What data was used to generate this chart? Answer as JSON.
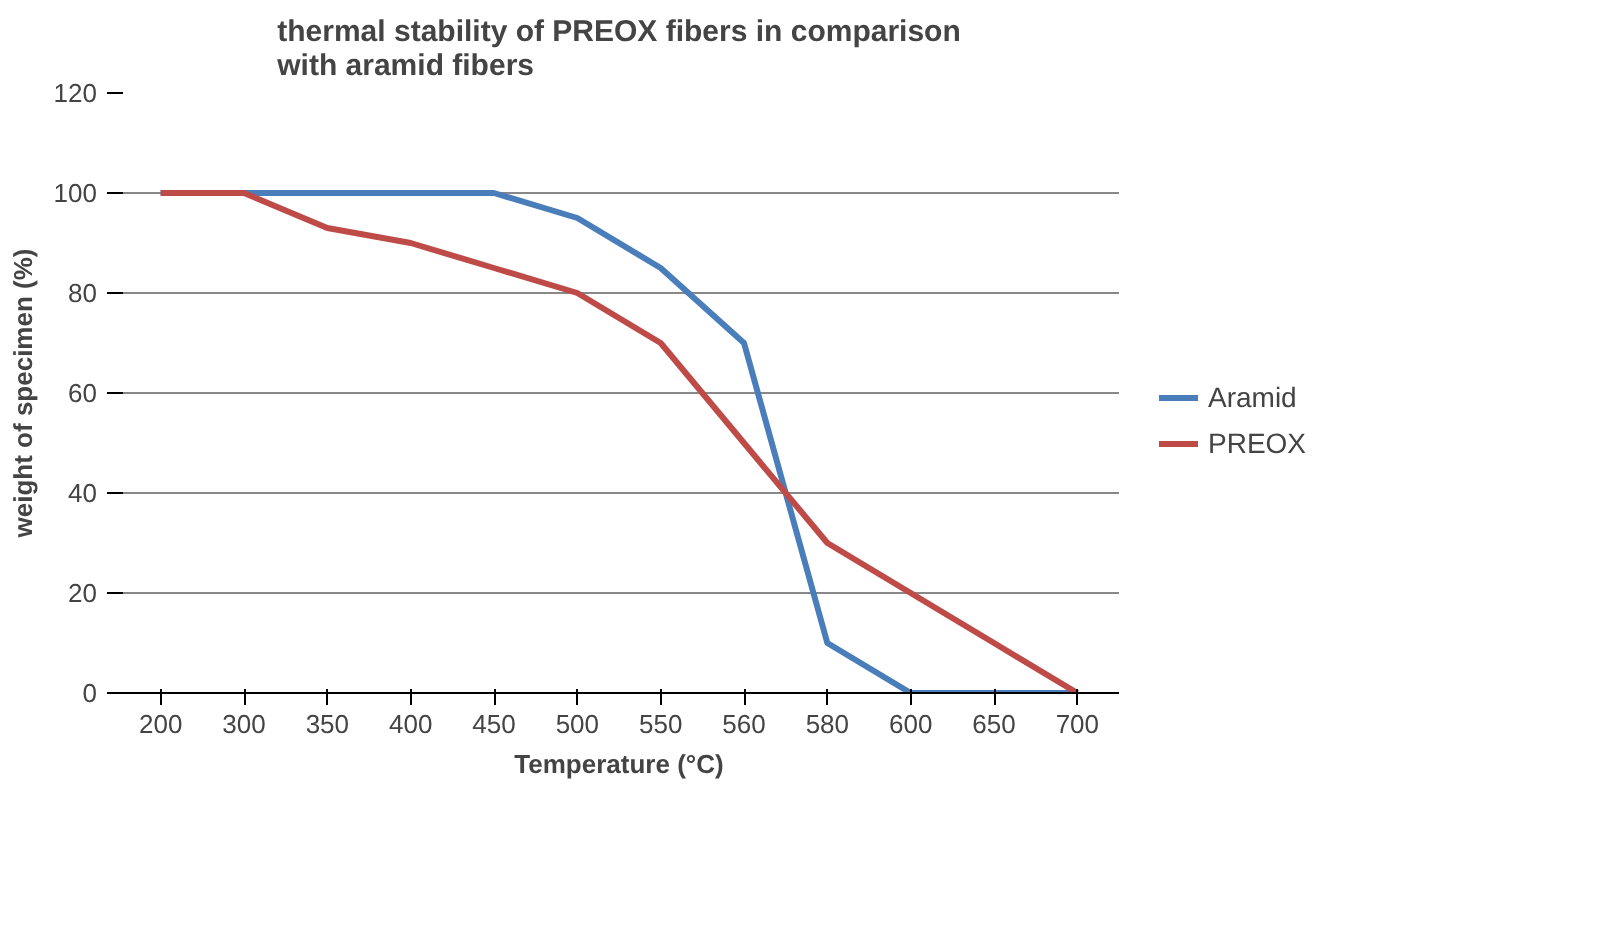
{
  "chart_data": {
    "type": "line",
    "title": "thermal stability of PREOX fibers in comparison with aramid fibers",
    "xlabel": "Temperature (°C)",
    "ylabel": "weight of specimen (%)",
    "categories": [
      "200",
      "300",
      "350",
      "400",
      "450",
      "500",
      "550",
      "560",
      "580",
      "600",
      "650",
      "700"
    ],
    "series": [
      {
        "name": "Aramid",
        "color": "#4a7ebb",
        "values": [
          100,
          100,
          100,
          100,
          100,
          95,
          85,
          70,
          10,
          0,
          0,
          0
        ]
      },
      {
        "name": "PREOX",
        "color": "#be4b48",
        "values": [
          100,
          100,
          93,
          90,
          85,
          80,
          70,
          50,
          30,
          20,
          10,
          0
        ]
      }
    ],
    "ylim": [
      0,
      120
    ],
    "yticks": [
      0,
      20,
      40,
      60,
      80,
      100,
      120
    ],
    "grid": "y",
    "legend": "right",
    "marker": "none",
    "line_style": "solid"
  }
}
